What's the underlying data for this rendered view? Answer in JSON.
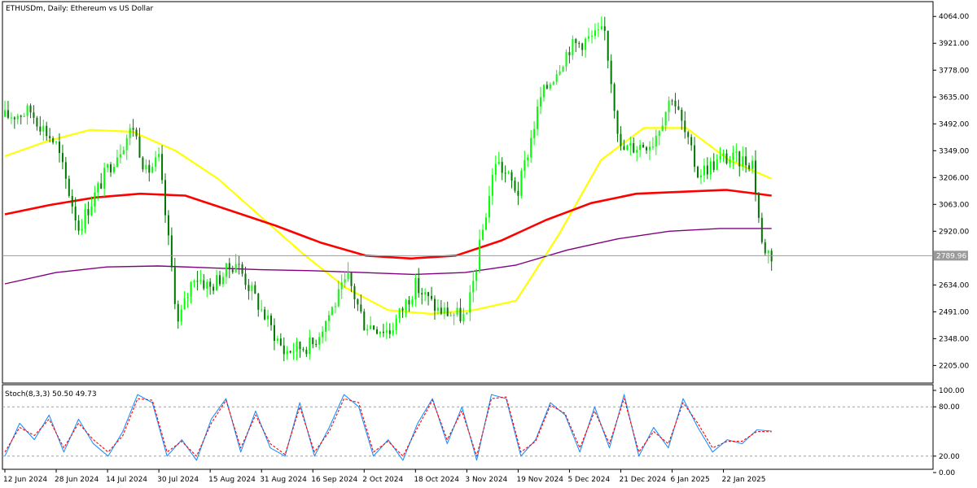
{
  "window": {
    "symbol_line": "ETHUSDm, Daily:  Ethereum vs US Dollar"
  },
  "colors": {
    "background": "#ffffff",
    "axis": "#000000",
    "candle_bull": "#00ff00",
    "candle_bear": "#007700",
    "ma_fast": "#8fd18f",
    "ma_yellow": "#ffff00",
    "ma_green": "#32cd32",
    "ma_red": "#ff0000",
    "ma_purple": "#800080",
    "stoch_main": "#1e90ff",
    "stoch_signal": "#ff0000",
    "price_line": "#9a9a9a",
    "price_tag_bg": "#9a9a9a"
  },
  "chart_data": [
    {
      "type": "line",
      "title": "ETHUSDm, Daily:  Ethereum vs US Dollar",
      "xlabel": "",
      "ylabel": "",
      "ylim": [
        2120,
        4130
      ],
      "yticks": [
        "4064.00",
        "3921.00",
        "3778.00",
        "3635.00",
        "3492.00",
        "3349.00",
        "3206.00",
        "3063.00",
        "2920.00",
        "2634.00",
        "2491.00",
        "2348.00",
        "2205.00"
      ],
      "ytick_values": [
        4064,
        3921,
        3778,
        3635,
        3492,
        3349,
        3206,
        3063,
        2920,
        2634,
        2491,
        2348,
        2205
      ],
      "xticks": [
        "12 Jun 2024",
        "28 Jun 2024",
        "14 Jul 2024",
        "30 Jul 2024",
        "15 Aug 2024",
        "31 Aug 2024",
        "16 Sep 2024",
        "2 Oct 2024",
        "18 Oct 2024",
        "3 Nov 2024",
        "19 Nov 2024",
        "5 Dec 2024",
        "21 Dec 2024",
        "6 Jan 2025",
        "22 Jan 2025"
      ],
      "current_price": 2789.96,
      "current_price_label": "2789.96",
      "grid": false,
      "price_path": [
        [
          "12 Jun 2024",
          3530
        ],
        [
          "20 Jun 2024",
          3560
        ],
        [
          "28 Jun 2024",
          3380
        ],
        [
          "5 Jul 2024",
          2940
        ],
        [
          "14 Jul 2024",
          3250
        ],
        [
          "22 Jul 2024",
          3480
        ],
        [
          "26 Jul 2024",
          3230
        ],
        [
          "30 Jul 2024",
          3300
        ],
        [
          "5 Aug 2024",
          2430
        ],
        [
          "10 Aug 2024",
          2690
        ],
        [
          "15 Aug 2024",
          2620
        ],
        [
          "23 Aug 2024",
          2760
        ],
        [
          "31 Aug 2024",
          2500
        ],
        [
          "7 Sep 2024",
          2280
        ],
        [
          "16 Sep 2024",
          2320
        ],
        [
          "27 Sep 2024",
          2670
        ],
        [
          "2 Oct 2024",
          2430
        ],
        [
          "10 Oct 2024",
          2390
        ],
        [
          "18 Oct 2024",
          2630
        ],
        [
          "25 Oct 2024",
          2500
        ],
        [
          "3 Nov 2024",
          2460
        ],
        [
          "12 Nov 2024",
          3300
        ],
        [
          "19 Nov 2024",
          3130
        ],
        [
          "26 Nov 2024",
          3630
        ],
        [
          "5 Dec 2024",
          3900
        ],
        [
          "16 Dec 2024",
          3980
        ],
        [
          "21 Dec 2024",
          3350
        ],
        [
          "31 Dec 2024",
          3400
        ],
        [
          "6 Jan 2025",
          3650
        ],
        [
          "14 Jan 2025",
          3230
        ],
        [
          "22 Jan 2025",
          3310
        ],
        [
          "31 Jan 2025",
          3290
        ],
        [
          "3 Feb 2025",
          2850
        ],
        [
          "6 Feb 2025",
          2790
        ]
      ],
      "series": [
        {
          "color": "#ffff00",
          "values": [
            3320,
            3400,
            3460,
            3450,
            3350,
            3200,
            3000,
            2800,
            2620,
            2500,
            2480,
            2500,
            2550,
            2900,
            3300,
            3470,
            3470,
            3300,
            3200
          ]
        },
        {
          "color": "#ff0000",
          "values": [
            3010,
            3060,
            3100,
            3120,
            3110,
            3030,
            2950,
            2860,
            2790,
            2775,
            2790,
            2870,
            2980,
            3070,
            3120,
            3130,
            3140,
            3110
          ]
        },
        {
          "color": "#800080",
          "values": [
            2640,
            2700,
            2730,
            2735,
            2725,
            2715,
            2710,
            2700,
            2690,
            2700,
            2740,
            2820,
            2880,
            2920,
            2935,
            2935
          ]
        }
      ]
    },
    {
      "type": "line",
      "title": "Stoch(8,3,3) 50.50 49.73",
      "ylim": [
        0,
        100
      ],
      "yticks": [
        "100.00",
        "80.00",
        "20.00",
        "0.00"
      ],
      "ytick_values": [
        100,
        80,
        20,
        0
      ],
      "levels": [
        80,
        20
      ],
      "series": [
        {
          "color": "#1e90ff",
          "values": [
            20,
            60,
            40,
            70,
            25,
            65,
            35,
            20,
            50,
            95,
            85,
            20,
            40,
            15,
            65,
            90,
            25,
            75,
            30,
            20,
            85,
            20,
            55,
            95,
            80,
            20,
            40,
            15,
            60,
            90,
            35,
            80,
            15,
            95,
            90,
            20,
            40,
            85,
            70,
            25,
            80,
            30,
            95,
            20,
            55,
            30,
            90,
            55,
            25,
            40,
            35,
            52,
            50.5
          ]
        },
        {
          "color": "#ff0000",
          "values": [
            25,
            55,
            45,
            65,
            30,
            60,
            40,
            25,
            45,
            90,
            88,
            25,
            38,
            20,
            60,
            88,
            30,
            70,
            35,
            22,
            80,
            25,
            50,
            90,
            85,
            25,
            38,
            20,
            55,
            88,
            40,
            75,
            20,
            90,
            92,
            25,
            38,
            82,
            72,
            30,
            75,
            35,
            90,
            25,
            50,
            35,
            85,
            60,
            30,
            38,
            38,
            50,
            49.73
          ]
        }
      ]
    }
  ]
}
